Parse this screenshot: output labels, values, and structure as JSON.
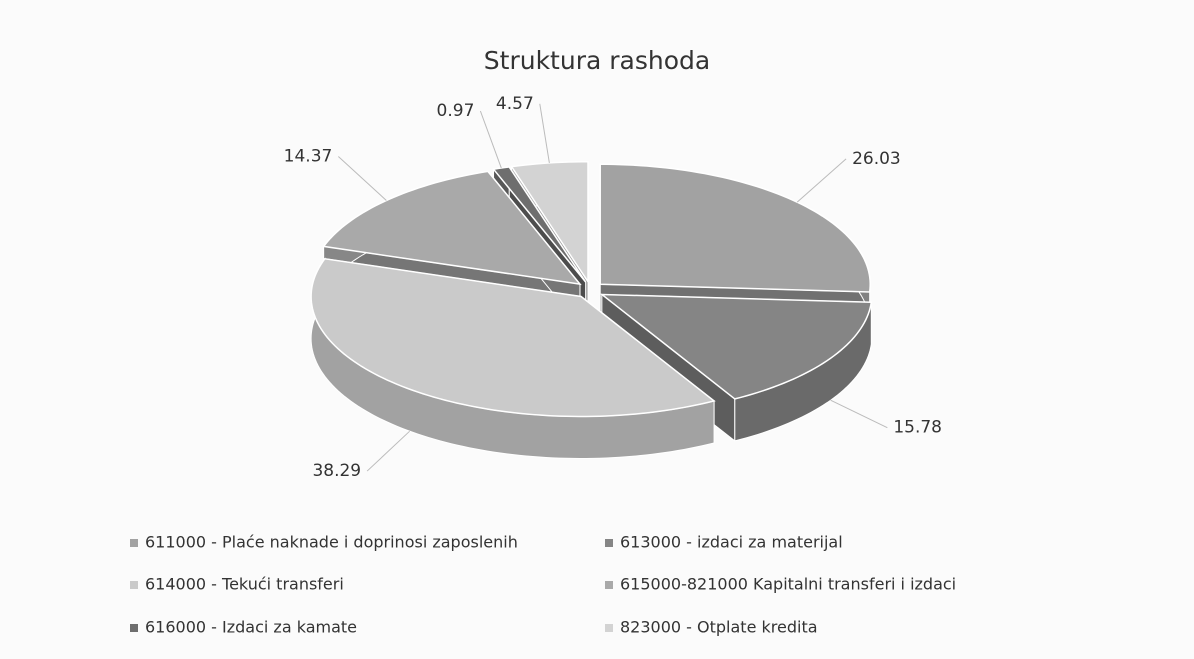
{
  "chart_data": {
    "type": "pie",
    "title": "Struktura rashoda",
    "categories": [
      "611000 - Plaće naknade i doprinosi zaposlenih",
      "613000 - izdaci za materijal",
      "614000 - Tekući transferi",
      "615000-821000 Kapitalni transferi i izdaci",
      "616000 - Izdaci za kamate",
      "823000 - Otplate kredita"
    ],
    "values": [
      26.03,
      15.78,
      38.29,
      14.37,
      0.97,
      4.57
    ],
    "colors": [
      "#a2a2a2",
      "#858585",
      "#cacaca",
      "#a9a9a9",
      "#6e6e6e",
      "#d3d3d3"
    ]
  }
}
